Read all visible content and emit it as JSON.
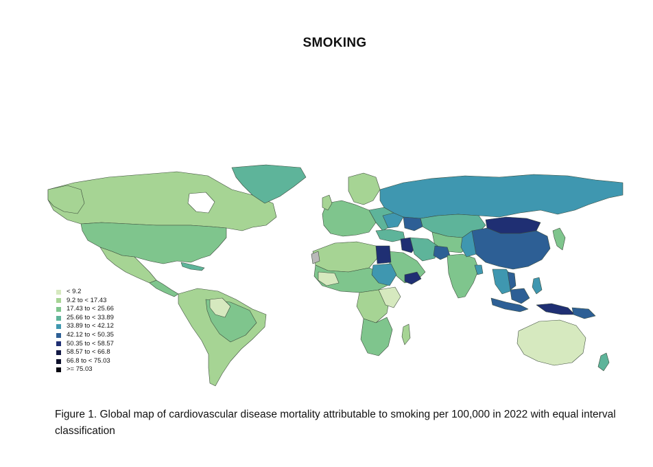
{
  "title": "SMOKING",
  "caption": "Figure 1. Global map of cardiovascular disease mortality attributable to smoking per 100,000 in 2022 with equal interval classification",
  "legend": [
    {
      "label": "< 9.2",
      "color": "#d6e9bf"
    },
    {
      "label": "9.2 to < 17.43",
      "color": "#a6d494"
    },
    {
      "label": "17.43 to < 25.66",
      "color": "#7fc58d"
    },
    {
      "label": "25.66 to < 33.89",
      "color": "#5eb49a"
    },
    {
      "label": "33.89 to < 42.12",
      "color": "#3f97b0"
    },
    {
      "label": "42.12 to < 50.35",
      "color": "#2d5f95"
    },
    {
      "label": "50.35 to < 58.57",
      "color": "#1f2f73"
    },
    {
      "label": "58.57 to < 66.8",
      "color": "#141a46"
    },
    {
      "label": "66.8 to < 75.03",
      "color": "#0c0f2a"
    },
    {
      "label": ">= 75.03",
      "color": "#050510"
    }
  ],
  "map_colors": {
    "ocean": "#ffffff",
    "border": "#3a4a3a",
    "no_data": "#b9b9b9"
  }
}
